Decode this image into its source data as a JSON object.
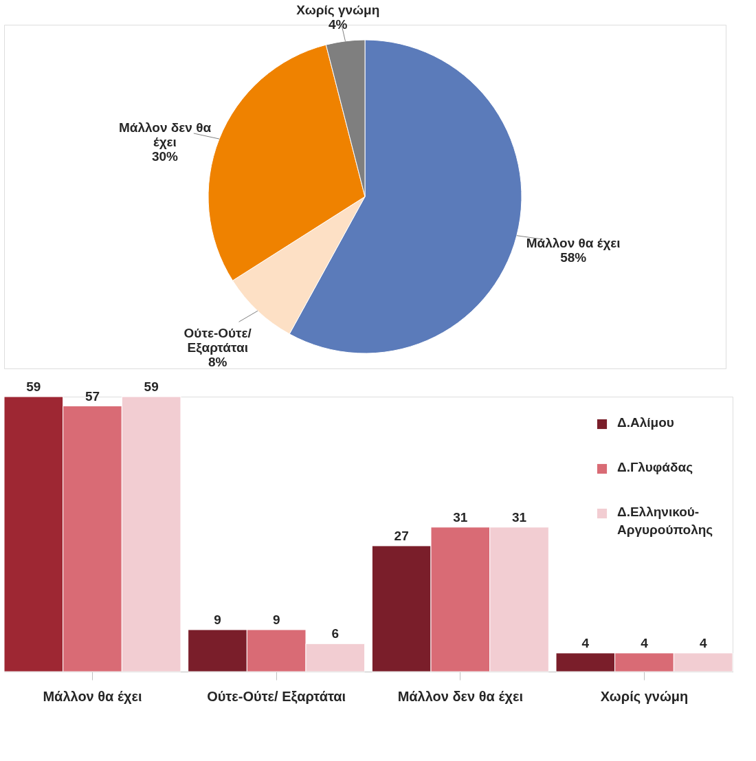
{
  "chart_data": [
    {
      "type": "pie",
      "categories": [
        "Μάλλον θα έχει",
        "Ούτε-Ούτε/ Εξαρτάται",
        "Μάλλον δεν θα έχει",
        "Χωρίς γνώμη"
      ],
      "values": [
        58,
        8,
        30,
        4
      ],
      "colors": [
        "#5b7bba",
        "#fde0c5",
        "#ef8200",
        "#7f7f7f"
      ],
      "value_labels": [
        "58%",
        "8%",
        "30%",
        "4%"
      ]
    },
    {
      "type": "bar",
      "categories": [
        "Μάλλον θα έχει",
        "Ούτε-Ούτε/ Εξαρτάται",
        "Μάλλον δεν θα έχει",
        "Χωρίς γνώμη"
      ],
      "data_labels": true,
      "legend": "top right",
      "series": [
        {
          "name": "Δ.Αλίμου",
          "color": "#7a1e2a",
          "colors": [
            "#9e2733",
            "#7a1e2a",
            "#7a1e2a",
            "#7a1e2a"
          ],
          "values": [
            59,
            9,
            27,
            4
          ]
        },
        {
          "name": "Δ.Γλυφάδας",
          "color": "#d96b75",
          "values": [
            57,
            9,
            31,
            4
          ]
        },
        {
          "name": "Δ.Ελληνικού-Αργυρούπολης",
          "color": "#f2cdd2",
          "values": [
            59,
            6,
            31,
            4
          ]
        }
      ]
    }
  ]
}
